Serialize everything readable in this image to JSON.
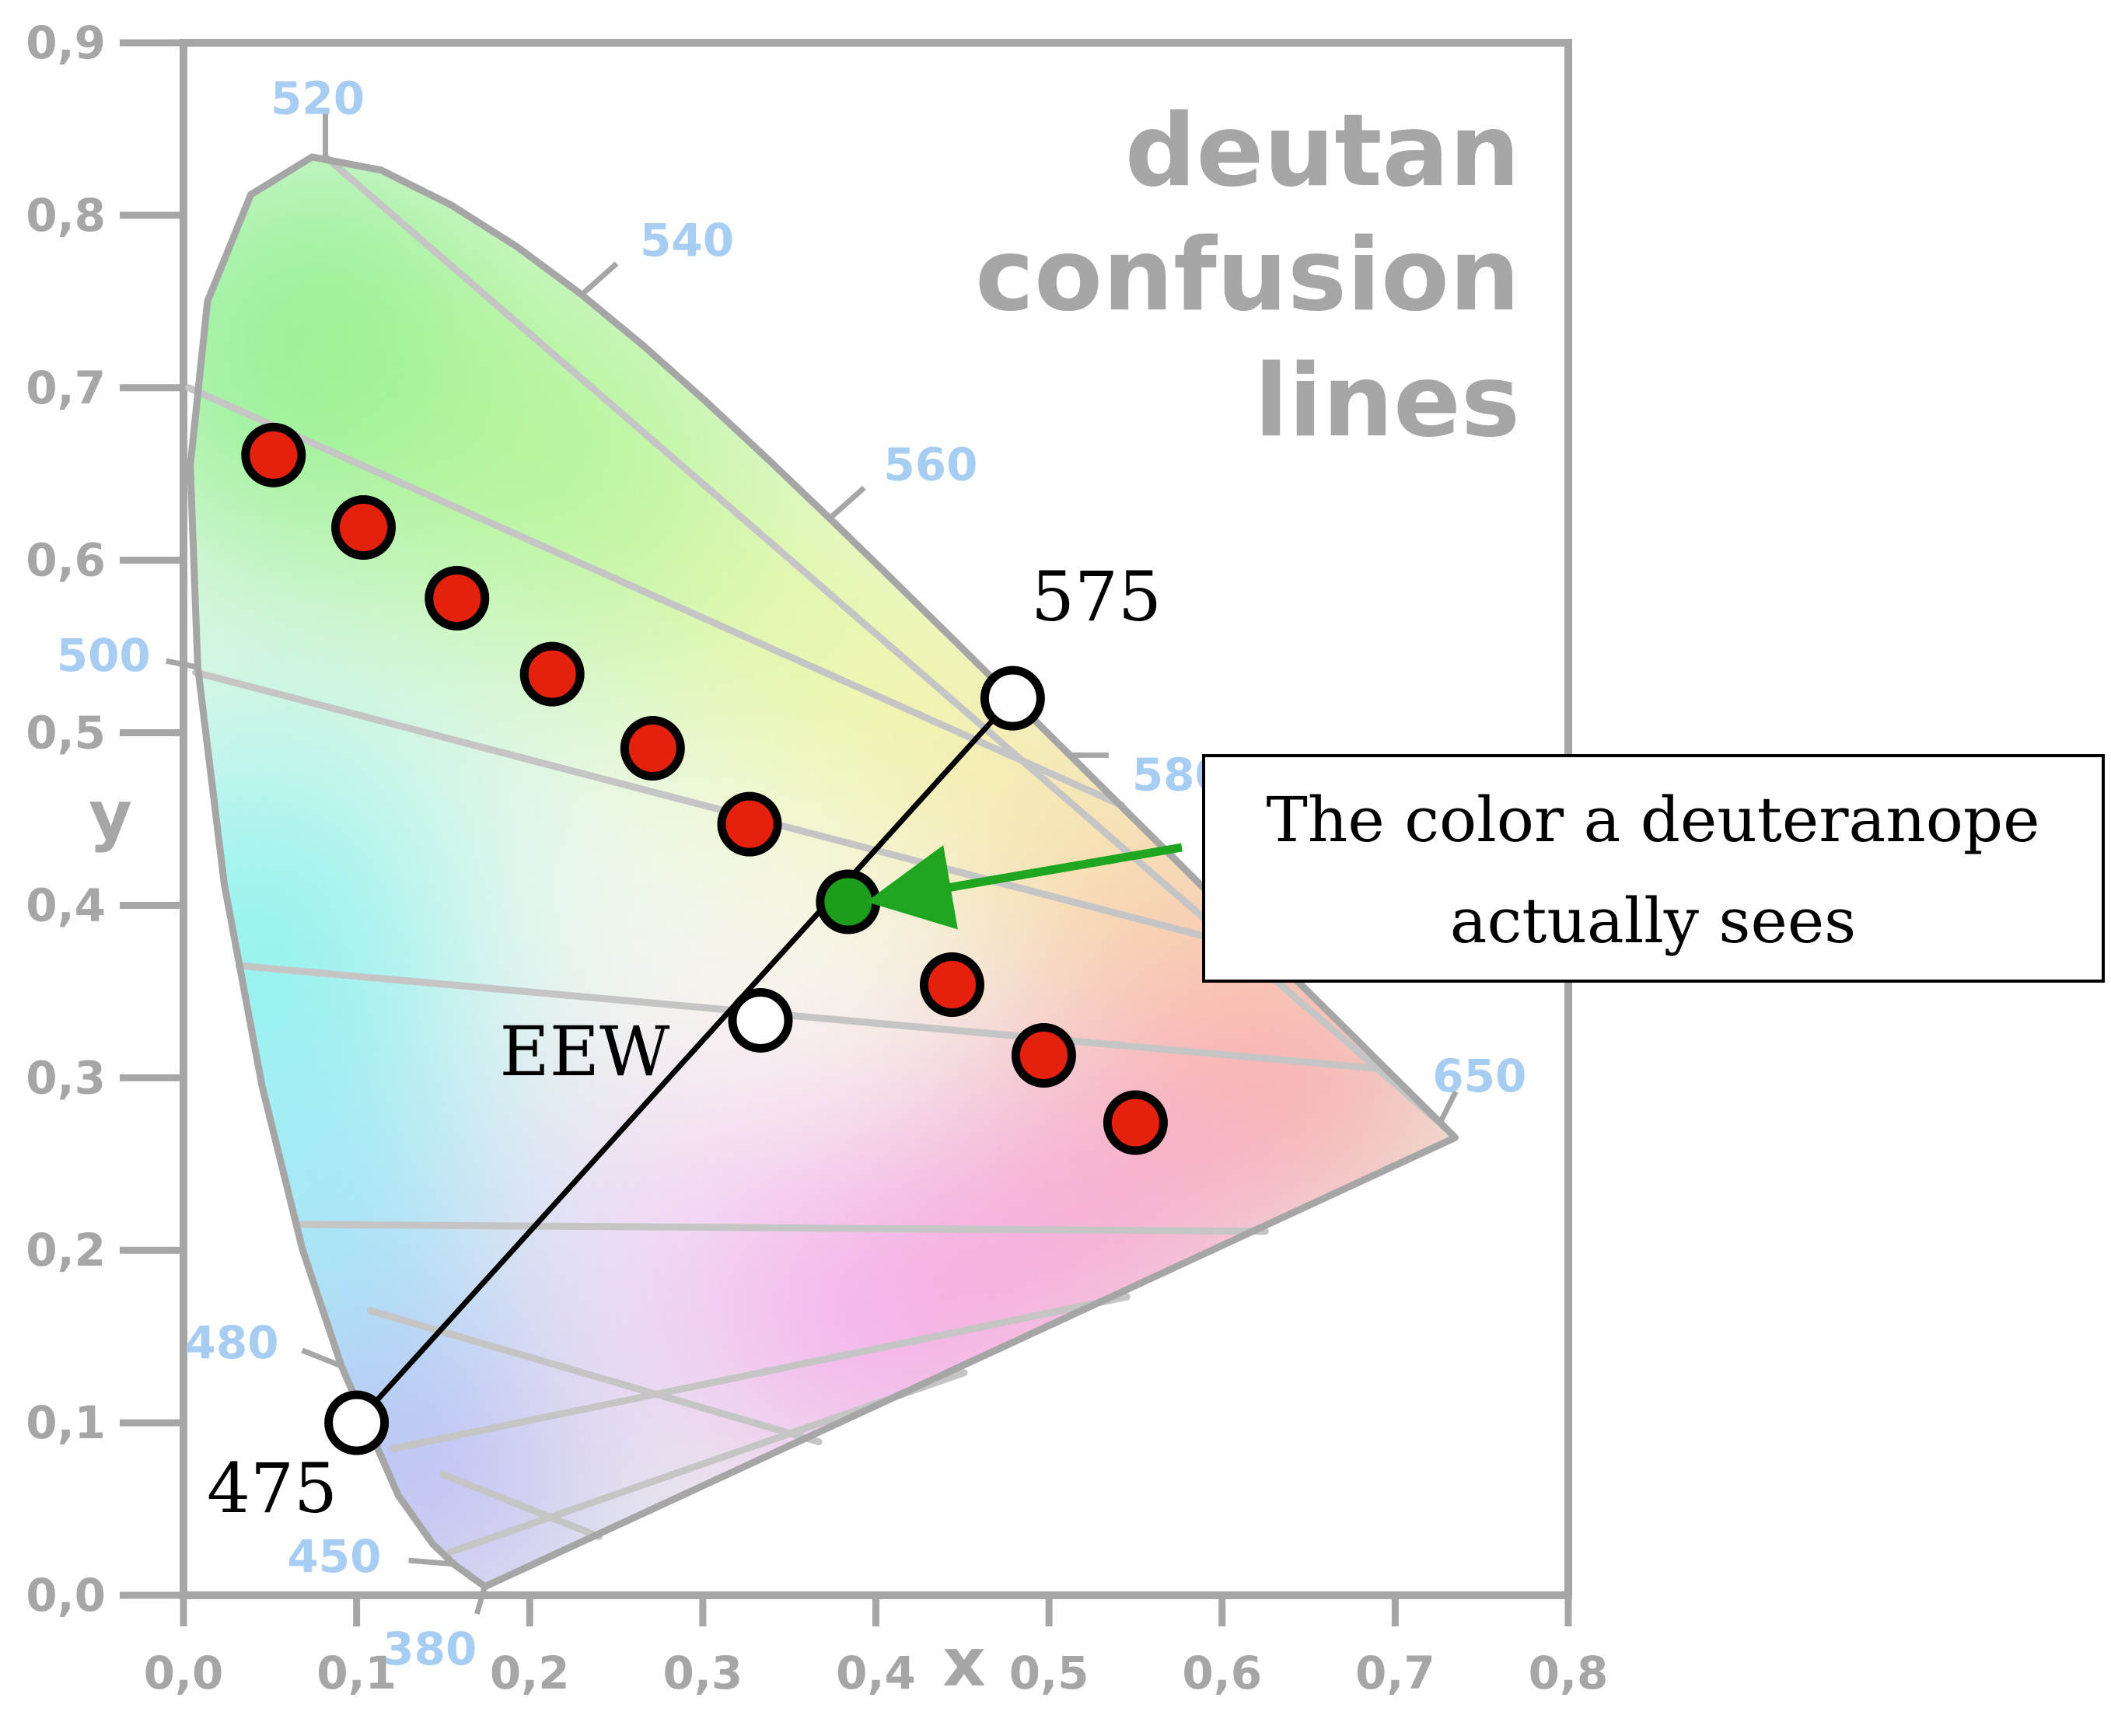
{
  "chart_data": {
    "type": "scatter",
    "title_lines": [
      "deutan",
      "confusion",
      "lines"
    ],
    "xlabel": "x",
    "ylabel": "y",
    "xlim": [
      0.0,
      0.8
    ],
    "ylim": [
      0.0,
      0.9
    ],
    "x_ticks": [
      "0,0",
      "0,1",
      "0,2",
      "0,3",
      "0,4",
      "0,5",
      "0,6",
      "0,7",
      "0,8"
    ],
    "y_ticks": [
      "0,0",
      "0,1",
      "0,2",
      "0,3",
      "0,4",
      "0,5",
      "0,6",
      "0,7",
      "0,8",
      "0,9"
    ],
    "wavelength_labels": [
      {
        "label": "520",
        "x": 0.082,
        "y": 0.834
      },
      {
        "label": "540",
        "x": 0.23,
        "y": 0.754
      },
      {
        "label": "560",
        "x": 0.373,
        "y": 0.624
      },
      {
        "label": "580",
        "x": 0.512,
        "y": 0.487
      },
      {
        "label": "650",
        "x": 0.726,
        "y": 0.274
      },
      {
        "label": "500",
        "x": 0.008,
        "y": 0.538
      },
      {
        "label": "480",
        "x": 0.091,
        "y": 0.133
      },
      {
        "label": "450",
        "x": 0.157,
        "y": 0.018
      },
      {
        "label": "380",
        "x": 0.174,
        "y": 0.005
      }
    ],
    "spectral_locus": [
      [
        0.1741,
        0.005
      ],
      [
        0.1566,
        0.0177
      ],
      [
        0.144,
        0.0297
      ],
      [
        0.1241,
        0.0578
      ],
      [
        0.0913,
        0.1327
      ],
      [
        0.0687,
        0.2007
      ],
      [
        0.0454,
        0.295
      ],
      [
        0.0235,
        0.4127
      ],
      [
        0.0082,
        0.5384
      ],
      [
        0.0039,
        0.6548
      ],
      [
        0.0139,
        0.7502
      ],
      [
        0.0389,
        0.812
      ],
      [
        0.0743,
        0.8338
      ],
      [
        0.1142,
        0.8262
      ],
      [
        0.1547,
        0.8059
      ],
      [
        0.1929,
        0.7816
      ],
      [
        0.2296,
        0.7543
      ],
      [
        0.2658,
        0.7243
      ],
      [
        0.3016,
        0.6923
      ],
      [
        0.3373,
        0.6589
      ],
      [
        0.3731,
        0.6245
      ],
      [
        0.4087,
        0.5896
      ],
      [
        0.4441,
        0.5547
      ],
      [
        0.4788,
        0.5202
      ],
      [
        0.5125,
        0.4866
      ],
      [
        0.5448,
        0.4544
      ],
      [
        0.5752,
        0.4242
      ],
      [
        0.6029,
        0.3965
      ],
      [
        0.627,
        0.3725
      ],
      [
        0.6482,
        0.3514
      ],
      [
        0.6658,
        0.334
      ],
      [
        0.6801,
        0.3197
      ],
      [
        0.6915,
        0.3083
      ],
      [
        0.7006,
        0.2993
      ],
      [
        0.7079,
        0.292
      ],
      [
        0.7347,
        0.2653
      ]
    ],
    "confusion_lines": [
      {
        "from": [
          0.082,
          0.834
        ],
        "to": [
          0.728,
          0.272
        ]
      },
      {
        "from": [
          0.003,
          0.7
        ],
        "to": [
          0.542,
          0.458
        ]
      },
      {
        "from": [
          0.007,
          0.535
        ],
        "to": [
          0.628,
          0.372
        ]
      },
      {
        "from": [
          0.032,
          0.365
        ],
        "to": [
          0.694,
          0.305
        ]
      },
      {
        "from": [
          0.068,
          0.215
        ],
        "to": [
          0.625,
          0.211
        ]
      },
      {
        "from": [
          0.121,
          0.085
        ],
        "to": [
          0.545,
          0.173
        ]
      },
      {
        "from": [
          0.154,
          0.025
        ],
        "to": [
          0.451,
          0.129
        ]
      },
      {
        "from": [
          0.108,
          0.165
        ],
        "to": [
          0.367,
          0.089
        ]
      },
      {
        "from": [
          0.15,
          0.07
        ],
        "to": [
          0.24,
          0.034
        ]
      }
    ],
    "series": [
      {
        "name": "",
        "marker_color": "#e4210f",
        "points": [
          [
            0.052,
            0.661
          ],
          [
            0.104,
            0.619
          ],
          [
            0.158,
            0.578
          ],
          [
            0.213,
            0.534
          ],
          [
            0.271,
            0.491
          ],
          [
            0.327,
            0.447
          ],
          [
            0.444,
            0.354
          ],
          [
            0.497,
            0.313
          ],
          [
            0.55,
            0.274
          ]
        ]
      }
    ],
    "annotated_points": [
      {
        "label": "575",
        "x": 0.479,
        "y": 0.52,
        "fill": "#ffffff"
      },
      {
        "label": "EEW",
        "x": 0.3333,
        "y": 0.3333,
        "fill": "#ffffff"
      },
      {
        "label": "475",
        "x": 0.1,
        "y": 0.1,
        "fill": "#ffffff"
      },
      {
        "label": "",
        "x": 0.384,
        "y": 0.402,
        "fill": "#1c9e1c"
      }
    ],
    "eew_line": {
      "from": [
        0.1,
        0.1
      ],
      "to": [
        0.479,
        0.52
      ]
    },
    "callout": {
      "lines": [
        "The color a deuteranope",
        "actually sees"
      ],
      "arrow_color": "#1fa51f",
      "target": [
        0.384,
        0.402
      ]
    },
    "grid": false,
    "colors": {
      "axis": "#a6a6a6",
      "locus_outline": "#a6a6a6",
      "confusion_line": "#c5c5c5",
      "wavelength_label": "#a8cdf2",
      "red_marker": "#e4210f",
      "green_marker": "#1c9e1c"
    }
  }
}
